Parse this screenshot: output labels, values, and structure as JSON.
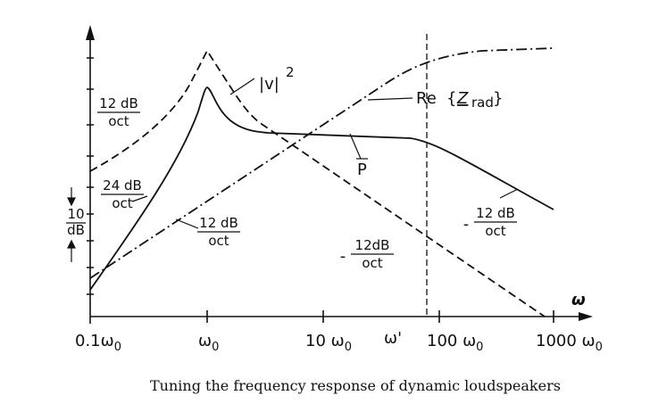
{
  "axis": {
    "x_label": "ω",
    "ticks": [
      "0.1ω",
      "ω",
      "10 ω",
      "ω'",
      "100 ω",
      "1000 ω"
    ],
    "tick_subscript": "0"
  },
  "curves": {
    "velocity": {
      "base": "|v|",
      "exponent": "2"
    },
    "power": "P",
    "radiation": {
      "re": "Re",
      "z": "Z",
      "sub": "rad"
    }
  },
  "slopes": [
    {
      "numerator": "12 dB",
      "denominator": "oct"
    },
    {
      "numerator": "24 dB",
      "denominator": "oct"
    },
    {
      "numerator": "12 dB",
      "denominator": "oct"
    },
    {
      "sign": "-",
      "numerator": "12dB",
      "denominator": "oct"
    },
    {
      "sign": "-",
      "numerator": "12 dB",
      "denominator": "oct"
    }
  ],
  "scale": {
    "top": "10",
    "bottom": "dB"
  },
  "caption": "Tuning the frequency response of dynamic loudspeakers"
}
